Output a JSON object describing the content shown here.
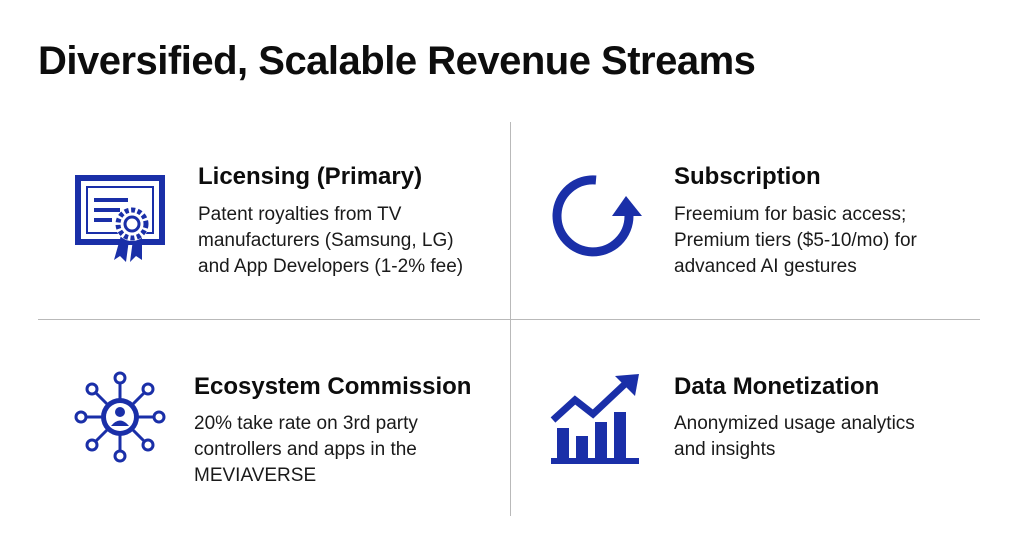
{
  "page": {
    "title": "Diversified, Scalable Revenue Streams"
  },
  "accent_color": "#1a2fa8",
  "streams": [
    {
      "heading": "Licensing (Primary)",
      "icon": "certificate-icon",
      "lines": [
        "Patent royalties from TV",
        "manufacturers (Samsung, LG)",
        "and App Developers (1-2% fee)"
      ]
    },
    {
      "heading": "Subscription",
      "icon": "refresh-cycle-icon",
      "lines": [
        "Freemium for basic access;",
        "Premium tiers ($5-10/mo) for",
        "advanced AI gestures"
      ]
    },
    {
      "heading": "Ecosystem Commission",
      "icon": "network-hub-icon",
      "lines": [
        "20% take rate on 3rd party",
        "controllers and apps in the",
        "MEVIAVERSE"
      ]
    },
    {
      "heading": "Data Monetization",
      "icon": "growth-chart-icon",
      "lines": [
        "Anonymized usage analytics",
        "and insights"
      ]
    }
  ]
}
